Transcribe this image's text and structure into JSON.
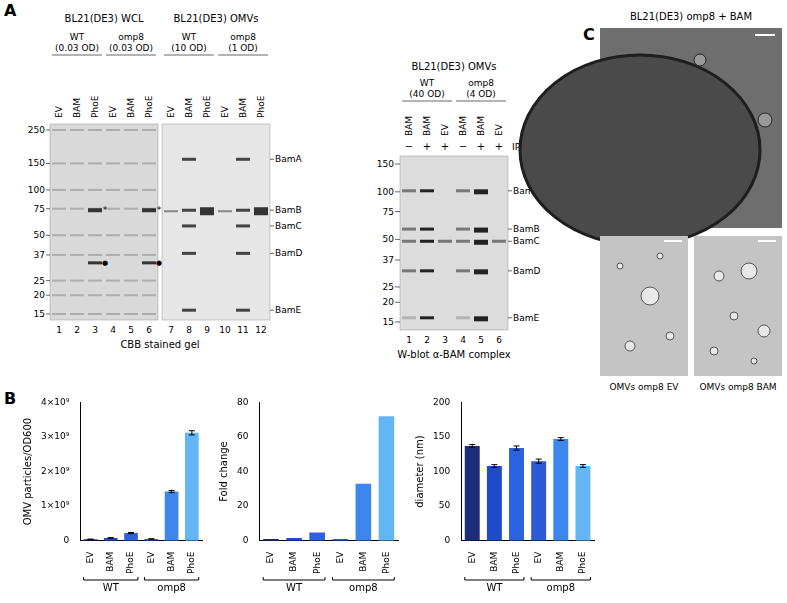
{
  "panel_a": {
    "letter": "A",
    "gel": {
      "markers": [
        250,
        150,
        100,
        75,
        50,
        37,
        25,
        20,
        15
      ],
      "sections": [
        {
          "title": "BL21(DE3) WCL",
          "groups": [
            {
              "lines": [
                "WT",
                "(0.03 OD)"
              ],
              "lanes": [
                "EV",
                "BAM",
                "PhoE"
              ]
            },
            {
              "lines": [
                "omp8",
                "(0.03 OD)"
              ],
              "lanes": [
                "EV",
                "BAM",
                "PhoE"
              ]
            }
          ]
        },
        {
          "title": "BL21(DE3) OMVs",
          "groups": [
            {
              "lines": [
                "WT",
                "(10 OD)"
              ],
              "lanes": [
                "EV",
                "BAM",
                "PhoE"
              ]
            },
            {
              "lines": [
                "omp8",
                "(1 OD)"
              ],
              "lanes": [
                "EV",
                "BAM",
                "PhoE"
              ]
            }
          ]
        }
      ],
      "lane_numbers": [
        1,
        2,
        3,
        4,
        5,
        6,
        7,
        8,
        9,
        10,
        11,
        12
      ],
      "band_labels": [
        "BamA",
        "BamB",
        "BamC",
        "BamD",
        "BamE"
      ],
      "symbols": [
        "*",
        "●"
      ],
      "caption": "CBB stained gel"
    },
    "blot": {
      "title": "BL21(DE3) OMVs",
      "markers": [
        150,
        100,
        75,
        50,
        37,
        25,
        20,
        15
      ],
      "groups": [
        {
          "lines": [
            "WT",
            "(40 OD)"
          ],
          "lanes": [
            {
              "plasmid": "BAM",
              "iptg": "−"
            },
            {
              "plasmid": "BAM",
              "iptg": "+"
            },
            {
              "plasmid": "EV",
              "iptg": "+"
            }
          ]
        },
        {
          "lines": [
            "omp8",
            "(4 OD)"
          ],
          "lanes": [
            {
              "plasmid": "BAM",
              "iptg": "−"
            },
            {
              "plasmid": "BAM",
              "iptg": "+"
            },
            {
              "plasmid": "EV",
              "iptg": "+"
            }
          ]
        }
      ],
      "row_label": "IPTG",
      "lane_numbers": [
        1,
        2,
        3,
        4,
        5,
        6
      ],
      "band_labels": [
        "BamA",
        "BamB",
        "BamC",
        "BamD",
        "BamE"
      ],
      "caption": "W-blot α-BAM complex"
    }
  },
  "panel_b": {
    "letter": "B"
  },
  "chart_data": [
    {
      "type": "bar",
      "categories": [
        "EV",
        "BAM",
        "PhoE",
        "EV",
        "BAM",
        "PhoE"
      ],
      "groups": [
        {
          "label": "WT",
          "size": 3
        },
        {
          "label": "omp8",
          "size": 3
        }
      ],
      "values": [
        40000000,
        80000000,
        220000000,
        50000000,
        1420000000,
        3120000000
      ],
      "errors": [
        5000000,
        8000000,
        15000000,
        5000000,
        30000000,
        60000000
      ],
      "colors": [
        "#1c2e7a",
        "#1f4bc8",
        "#2a62e0",
        "#2c5ad6",
        "#3d86ee",
        "#62b6f4"
      ],
      "y_label": "OMV particles/OD600",
      "ylim": [
        0,
        4000000000
      ],
      "yticks": [
        0,
        {
          "value": 1000000000,
          "label": "1×10⁹"
        },
        {
          "value": 2000000000,
          "label": "2×10⁹"
        },
        {
          "value": 3000000000,
          "label": "3×10⁹"
        },
        {
          "value": 4000000000,
          "label": "4×10⁹"
        }
      ],
      "grid": false
    },
    {
      "type": "bar",
      "categories": [
        "EV",
        "BAM",
        "PhoE",
        "EV",
        "BAM",
        "PhoE"
      ],
      "groups": [
        {
          "label": "WT",
          "size": 3
        },
        {
          "label": "omp8",
          "size": 3
        }
      ],
      "values": [
        1,
        1.6,
        4.8,
        1,
        33,
        72
      ],
      "colors": [
        "#1c2e7a",
        "#1f4bc8",
        "#2a62e0",
        "#2c5ad6",
        "#3d86ee",
        "#62b6f4"
      ],
      "y_label": "Fold change",
      "ylim": [
        0,
        80
      ],
      "yticks": [
        0,
        20,
        40,
        60,
        80
      ],
      "grid": false
    },
    {
      "type": "bar",
      "categories": [
        "EV",
        "BAM",
        "PhoE",
        "EV",
        "BAM",
        "PhoE"
      ],
      "groups": [
        {
          "label": "WT",
          "size": 3
        },
        {
          "label": "omp8",
          "size": 3
        }
      ],
      "values": [
        137,
        108,
        134,
        115,
        147,
        108
      ],
      "errors": [
        2,
        2,
        3,
        3,
        2,
        2
      ],
      "colors": [
        "#1c2e7a",
        "#1f4bc8",
        "#2a62e0",
        "#2c5ad6",
        "#3d86ee",
        "#62b6f4"
      ],
      "y_label": "diameter (nm)",
      "ylim": [
        0,
        200
      ],
      "yticks": [
        0,
        50,
        100,
        150,
        200
      ],
      "grid": false
    }
  ],
  "panel_c": {
    "letter": "C",
    "title": "BL21(DE3) omp8 + BAM",
    "captions": [
      "OMVs omp8 EV",
      "OMVs omp8 BAM"
    ]
  }
}
